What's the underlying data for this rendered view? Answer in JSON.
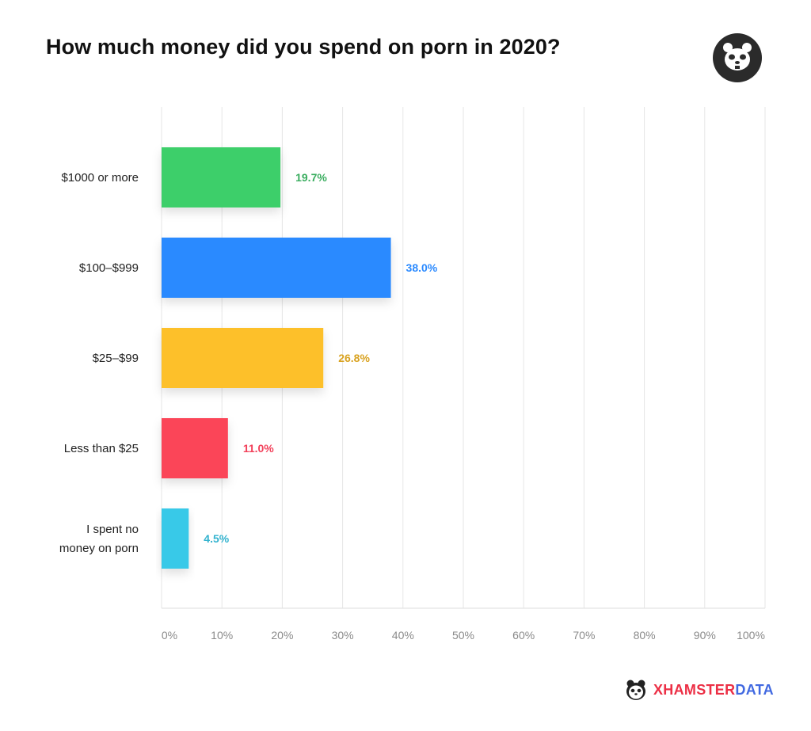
{
  "chart_data": {
    "type": "bar",
    "orientation": "horizontal",
    "title": "How much money did you spend on porn in 2020?",
    "categories": [
      "$1000 or more",
      "$100–$999",
      "$25–$99",
      "Less than $25",
      "I spent no money on porn"
    ],
    "category_lines": [
      [
        "$1000 or more"
      ],
      [
        "$100–$999"
      ],
      [
        "$25–$99"
      ],
      [
        "Less than $25"
      ],
      [
        "I spent no",
        "money on porn"
      ]
    ],
    "values": [
      19.7,
      38.0,
      26.8,
      11.0,
      4.5
    ],
    "value_labels": [
      "19.7%",
      "38.0%",
      "26.8%",
      "11.0%",
      "4.5%"
    ],
    "colors": [
      "#3ccf6b",
      "#2b8aff",
      "#fdc02a",
      "#fb4458",
      "#38c9e8"
    ],
    "label_colors": [
      "#3aad5f",
      "#2b8aff",
      "#d9a21f",
      "#f2405a",
      "#33b3cf"
    ],
    "x_ticks": [
      "0%",
      "10%",
      "20%",
      "30%",
      "40%",
      "50%",
      "60%",
      "70%",
      "80%",
      "90%",
      "100%"
    ],
    "xlim": [
      0,
      100
    ],
    "grid": true,
    "legend": "none"
  },
  "brand": {
    "prefix": "XHAMSTER",
    "suffix": "DATA",
    "logo_icon": "hamster-face-icon"
  }
}
